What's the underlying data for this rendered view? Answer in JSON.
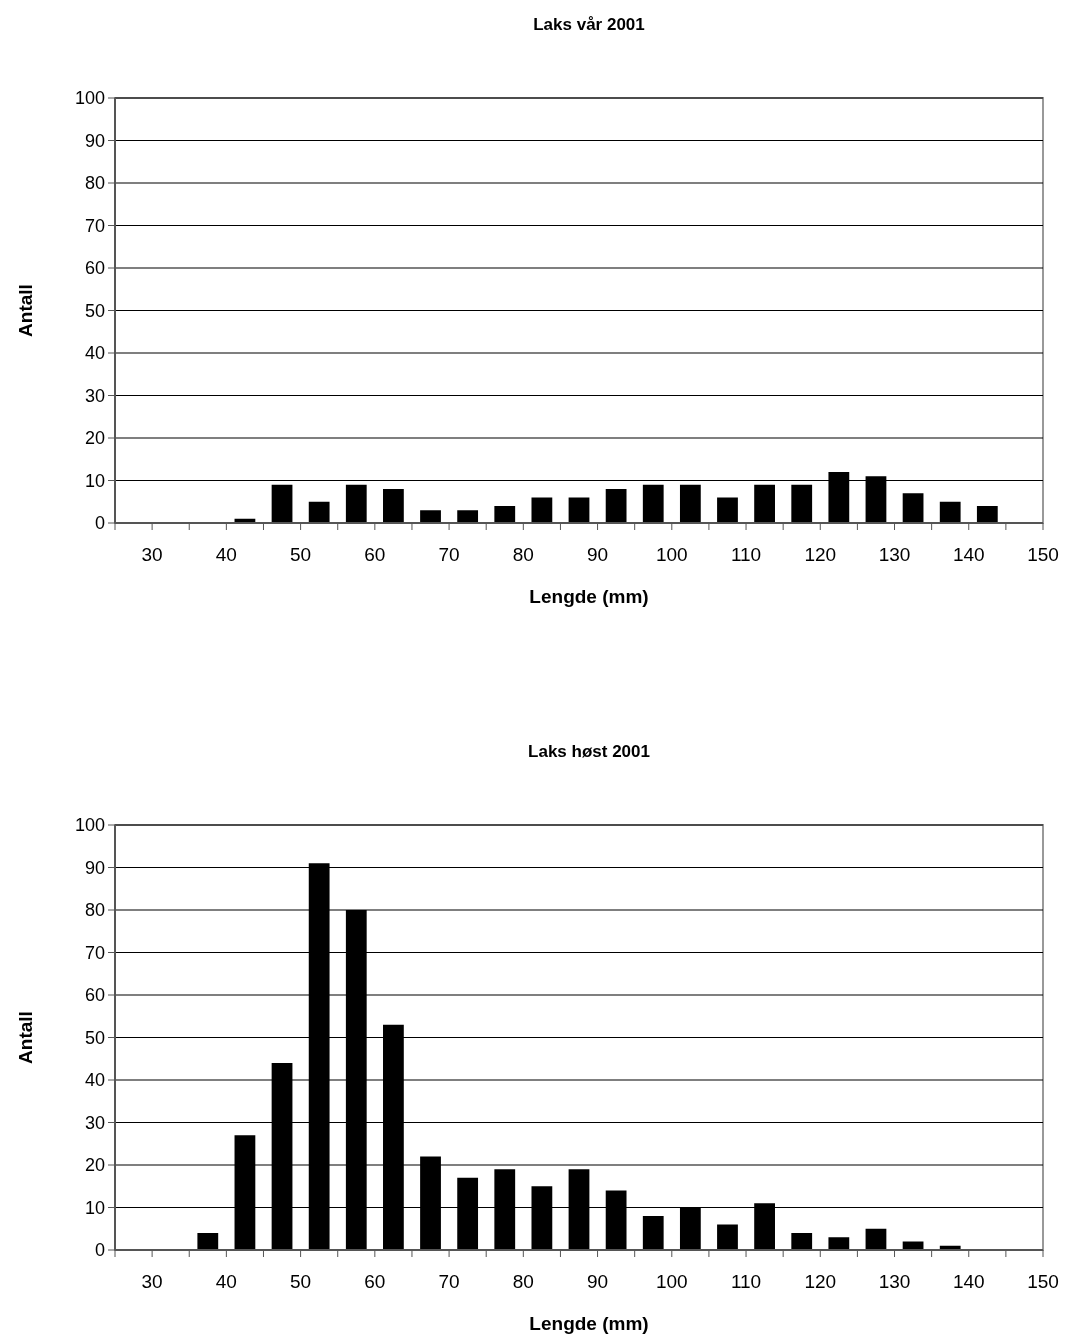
{
  "chart_data": [
    {
      "type": "histogram",
      "title": "Laks vår 2001",
      "xlabel": "Lengde (mm)",
      "ylabel": "Antall",
      "bins": [
        25,
        30,
        35,
        40,
        45,
        50,
        55,
        60,
        65,
        70,
        75,
        80,
        85,
        90,
        95,
        100,
        105,
        110,
        115,
        120,
        125,
        130,
        135,
        140,
        145,
        150
      ],
      "values": [
        0,
        0,
        0,
        1,
        9,
        5,
        9,
        8,
        3,
        3,
        4,
        6,
        6,
        8,
        9,
        9,
        6,
        9,
        9,
        12,
        11,
        7,
        5,
        4,
        0
      ],
      "color": "#000000",
      "xlim": [
        25,
        150
      ],
      "xticks": [
        {
          "value": 25,
          "label": null
        },
        30,
        {
          "value": 35,
          "label": null
        },
        40,
        {
          "value": 45,
          "label": null
        },
        50,
        {
          "value": 55,
          "label": null
        },
        60,
        {
          "value": 65,
          "label": null
        },
        70,
        {
          "value": 75,
          "label": null
        },
        80,
        {
          "value": 85,
          "label": null
        },
        90,
        {
          "value": 95,
          "label": null
        },
        100,
        {
          "value": 105,
          "label": null
        },
        110,
        {
          "value": 115,
          "label": null
        },
        120,
        {
          "value": 125,
          "label": null
        },
        130,
        {
          "value": 135,
          "label": null
        },
        140,
        {
          "value": 145,
          "label": null
        },
        150
      ],
      "ylim": [
        0,
        100
      ],
      "yticks": [
        0,
        10,
        20,
        30,
        40,
        50,
        60,
        70,
        80,
        90,
        100
      ],
      "grid": "y"
    },
    {
      "type": "histogram",
      "title": "Laks høst 2001",
      "xlabel": "Lengde (mm)",
      "ylabel": "Antall",
      "bins": [
        25,
        30,
        35,
        40,
        45,
        50,
        55,
        60,
        65,
        70,
        75,
        80,
        85,
        90,
        95,
        100,
        105,
        110,
        115,
        120,
        125,
        130,
        135,
        140,
        145,
        150
      ],
      "values": [
        0,
        0,
        4,
        27,
        44,
        91,
        80,
        53,
        22,
        17,
        19,
        15,
        19,
        14,
        8,
        10,
        6,
        11,
        4,
        3,
        5,
        2,
        1,
        0,
        0
      ],
      "color": "#000000",
      "xlim": [
        25,
        150
      ],
      "xticks": [
        {
          "value": 25,
          "label": null
        },
        30,
        {
          "value": 35,
          "label": null
        },
        40,
        {
          "value": 45,
          "label": null
        },
        50,
        {
          "value": 55,
          "label": null
        },
        60,
        {
          "value": 65,
          "label": null
        },
        70,
        {
          "value": 75,
          "label": null
        },
        80,
        {
          "value": 85,
          "label": null
        },
        90,
        {
          "value": 95,
          "label": null
        },
        100,
        {
          "value": 105,
          "label": null
        },
        110,
        {
          "value": 115,
          "label": null
        },
        120,
        {
          "value": 125,
          "label": null
        },
        130,
        {
          "value": 135,
          "label": null
        },
        140,
        {
          "value": 145,
          "label": null
        },
        150
      ],
      "ylim": [
        0,
        100
      ],
      "yticks": [
        0,
        10,
        20,
        30,
        40,
        50,
        60,
        70,
        80,
        90,
        100
      ],
      "grid": "y"
    }
  ]
}
